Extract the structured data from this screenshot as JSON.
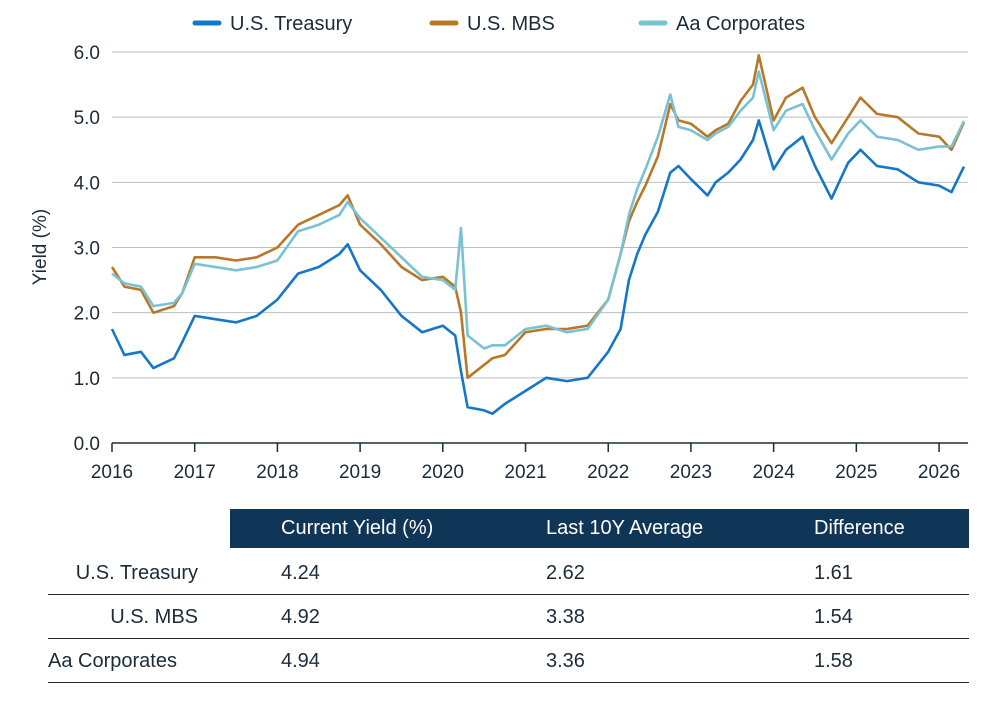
{
  "chart_data": {
    "type": "line",
    "title": "",
    "xlabel": "",
    "ylabel": "Yield (%)",
    "xlim": [
      2016.0,
      2026.35
    ],
    "ylim": [
      0,
      6
    ],
    "x_ticks": [
      "2016",
      "2017",
      "2018",
      "2019",
      "2020",
      "2021",
      "2022",
      "2023",
      "2024",
      "2025",
      "2026"
    ],
    "y_ticks": [
      "0.0",
      "1.0",
      "2.0",
      "3.0",
      "4.0",
      "5.0",
      "6.0"
    ],
    "grid": "horizontal",
    "legend_position": "top",
    "colors": {
      "U.S. Treasury": "#1577c6",
      "U.S. MBS": "#b8782a",
      "Aa Corporates": "#78c2d2"
    },
    "x": [
      2016.0,
      2016.15,
      2016.35,
      2016.5,
      2016.75,
      2016.85,
      2017.0,
      2017.25,
      2017.5,
      2017.75,
      2018.0,
      2018.25,
      2018.5,
      2018.75,
      2018.85,
      2019.0,
      2019.25,
      2019.5,
      2019.75,
      2020.0,
      2020.15,
      2020.22,
      2020.3,
      2020.5,
      2020.6,
      2020.75,
      2021.0,
      2021.25,
      2021.5,
      2021.75,
      2022.0,
      2022.15,
      2022.25,
      2022.35,
      2022.45,
      2022.6,
      2022.75,
      2022.85,
      2023.0,
      2023.2,
      2023.3,
      2023.45,
      2023.6,
      2023.75,
      2023.82,
      2024.0,
      2024.15,
      2024.35,
      2024.5,
      2024.7,
      2024.9,
      2025.05,
      2025.25,
      2025.5,
      2025.75,
      2026.0,
      2026.15,
      2026.3
    ],
    "series": [
      {
        "name": "U.S. Treasury",
        "values": [
          1.75,
          1.35,
          1.4,
          1.15,
          1.3,
          1.55,
          1.95,
          1.9,
          1.85,
          1.95,
          2.2,
          2.6,
          2.7,
          2.9,
          3.05,
          2.65,
          2.35,
          1.95,
          1.7,
          1.8,
          1.65,
          1.1,
          0.55,
          0.5,
          0.45,
          0.6,
          0.8,
          1.0,
          0.95,
          1.0,
          1.4,
          1.75,
          2.5,
          2.9,
          3.2,
          3.55,
          4.15,
          4.25,
          4.05,
          3.8,
          4.0,
          4.15,
          4.35,
          4.65,
          4.95,
          4.2,
          4.5,
          4.7,
          4.25,
          3.75,
          4.3,
          4.5,
          4.25,
          4.2,
          4.0,
          3.95,
          3.85,
          4.24
        ]
      },
      {
        "name": "U.S. MBS",
        "values": [
          2.7,
          2.4,
          2.35,
          2.0,
          2.1,
          2.3,
          2.85,
          2.85,
          2.8,
          2.85,
          3.0,
          3.35,
          3.5,
          3.65,
          3.8,
          3.35,
          3.05,
          2.7,
          2.5,
          2.55,
          2.4,
          2.0,
          1.0,
          1.2,
          1.3,
          1.35,
          1.7,
          1.75,
          1.75,
          1.8,
          2.2,
          2.9,
          3.4,
          3.7,
          3.95,
          4.4,
          5.2,
          4.95,
          4.9,
          4.7,
          4.8,
          4.9,
          5.25,
          5.5,
          5.95,
          4.95,
          5.3,
          5.45,
          5.0,
          4.6,
          5.0,
          5.3,
          5.05,
          5.0,
          4.75,
          4.7,
          4.5,
          4.92
        ]
      },
      {
        "name": "Aa Corporates",
        "values": [
          2.6,
          2.45,
          2.4,
          2.1,
          2.15,
          2.3,
          2.75,
          2.7,
          2.65,
          2.7,
          2.8,
          3.25,
          3.35,
          3.5,
          3.7,
          3.45,
          3.15,
          2.85,
          2.55,
          2.5,
          2.35,
          3.3,
          1.65,
          1.45,
          1.5,
          1.5,
          1.75,
          1.8,
          1.7,
          1.75,
          2.2,
          2.9,
          3.5,
          3.9,
          4.2,
          4.7,
          5.35,
          4.85,
          4.8,
          4.65,
          4.75,
          4.85,
          5.1,
          5.3,
          5.7,
          4.8,
          5.1,
          5.2,
          4.8,
          4.35,
          4.75,
          4.95,
          4.7,
          4.65,
          4.5,
          4.55,
          4.55,
          4.94
        ]
      }
    ]
  },
  "table": {
    "headers": [
      "Current Yield (%)",
      "Last 10Y Average",
      "Difference"
    ],
    "rows": [
      {
        "label": "U.S. Treasury",
        "current": "4.24",
        "average": "2.62",
        "difference": "1.61"
      },
      {
        "label": "U.S. MBS",
        "current": "4.92",
        "average": "3.38",
        "difference": "1.54"
      },
      {
        "label": "Aa Corporates",
        "current": "4.94",
        "average": "3.36",
        "difference": "1.58"
      }
    ]
  }
}
